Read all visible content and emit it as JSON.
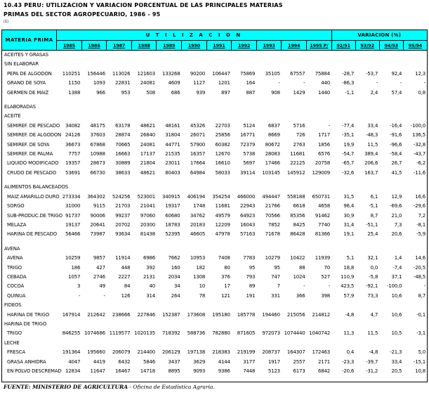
{
  "title": {
    "line1": "10.43  PERU:  UTILIZACION Y VARIACION PORCENTUAL DE LAS PRINCIPALES MATERIAS",
    "line2": "PRIMAS DEL SECTOR AGROPECUARIO, 1986 - 95",
    "note": "(1)"
  },
  "colors": {
    "header_bg": "#00FFFF",
    "border": "#000000",
    "text": "#000000",
    "page_bg": "#FFFFFF"
  },
  "header": {
    "materia_prima": "MATERIA PRIMA",
    "utilizacion": "U T I L I Z A C I O N",
    "variacion": "VARIACION (%)",
    "years": [
      "1985",
      "1986",
      "1987",
      "1988",
      "1989",
      "1990",
      "1991",
      "1992",
      "1993",
      "1994",
      "1995 P/"
    ],
    "variation_cols": [
      "92/91",
      "93/92",
      "94/93",
      "95/94"
    ]
  },
  "sections": [
    {
      "label": "ACEITES Y GRASAS",
      "gap_before": false,
      "rows": []
    },
    {
      "label": "SIN ELABORAR",
      "gap_before": false,
      "rows": [
        {
          "label": "PEPA DE ALGODON",
          "values": [
            "110251",
            "156446",
            "113026",
            "121603",
            "133268",
            "90200",
            "106447",
            "75869",
            "35105",
            "67557",
            "75884"
          ],
          "variations": [
            "-28,7",
            "-53,7",
            "92,4",
            "12,3"
          ]
        },
        {
          "label": "GRANO DE SOYA",
          "values": [
            "1150",
            "1093",
            "22831",
            "24081",
            "4609",
            "1127",
            "1201",
            "164",
            "-",
            "-",
            "440"
          ],
          "variations": [
            "-86,3",
            "-",
            "-",
            "-"
          ]
        },
        {
          "label": "GERMEN DE MAIZ",
          "values": [
            "1388",
            "966",
            "953",
            "508",
            "686",
            "939",
            "897",
            "887",
            "908",
            "1429",
            "1440"
          ],
          "variations": [
            "-1,1",
            "2,4",
            "57,4",
            "0,8"
          ]
        }
      ]
    },
    {
      "label": "ELABORADAS",
      "gap_before": true,
      "rows": []
    },
    {
      "label": "ACEITE",
      "gap_before": false,
      "rows": [
        {
          "label": "SEMIREF. DE PESCADO",
          "values": [
            "34082",
            "48175",
            "63178",
            "48621",
            "48161",
            "45326",
            "22703",
            "5124",
            "6837",
            "5716",
            "-"
          ],
          "variations": [
            "-77,4",
            "33,4",
            "-16,4",
            "-100,0"
          ]
        },
        {
          "label": "SEMIREF. DE ALGODON",
          "values": [
            "24126",
            "37603",
            "28874",
            "26840",
            "31804",
            "26071",
            "25856",
            "16771",
            "8669",
            "726",
            "1717"
          ],
          "variations": [
            "-35,1",
            "-48,3",
            "-91,6",
            "136,5"
          ]
        },
        {
          "label": "SEMIREF. DE SOYA",
          "values": [
            "36673",
            "67868",
            "70665",
            "24081",
            "44771",
            "57900",
            "60382",
            "72379",
            "80672",
            "2763",
            "1856"
          ],
          "variations": [
            "19,9",
            "11,5",
            "-96,6",
            "-32,8"
          ]
        },
        {
          "label": "SEMIREF. DE PALMA",
          "values": [
            "7757",
            "10988",
            "16663",
            "17137",
            "21535",
            "16357",
            "12670",
            "5738",
            "28083",
            "11681",
            "6576"
          ],
          "variations": [
            "-54,7",
            "389,4",
            "-58,4",
            "-43,7"
          ]
        },
        {
          "label": "LIQUIDO MODIFICADO",
          "values": [
            "19357",
            "28673",
            "30889",
            "21804",
            "23011",
            "17664",
            "16610",
            "5697",
            "17466",
            "22125",
            "20758"
          ],
          "variations": [
            "-65,7",
            "206,6",
            "26,7",
            "-6,2"
          ]
        },
        {
          "label": "CRUDO DE PESCADO",
          "values": [
            "53691",
            "66730",
            "38633",
            "48621",
            "80403",
            "64984",
            "58033",
            "39114",
            "103145",
            "145912",
            "129009"
          ],
          "variations": [
            "-32,6",
            "163,7",
            "41,5",
            "-11,6"
          ]
        }
      ]
    },
    {
      "label": "ALIMENTOS BALANCEADOS",
      "gap_before": true,
      "rows": [
        {
          "label": "MAIZ AMARILLO DURO",
          "values": [
            "273334",
            "364302",
            "524256",
            "523001",
            "340915",
            "406194",
            "354254",
            "466000",
            "494447",
            "558188",
            "650731"
          ],
          "variations": [
            "31,5",
            "6,1",
            "12,9",
            "16,6"
          ]
        },
        {
          "label": "SORGO",
          "values": [
            "31000",
            "9115",
            "21703",
            "21041",
            "19317",
            "1748",
            "11681",
            "22943",
            "21766",
            "6618",
            "4658"
          ],
          "variations": [
            "96,4",
            "-5,1",
            "-69,6",
            "-29,6"
          ]
        },
        {
          "label": "SUB-PRODUC.DE TRIGO",
          "values": [
            "91737",
            "90006",
            "99237",
            "97060",
            "60680",
            "34762",
            "49579",
            "64923",
            "70566",
            "85356",
            "91462"
          ],
          "variations": [
            "30,9",
            "8,7",
            "21,0",
            "7,2"
          ]
        },
        {
          "label": "MELAZA",
          "values": [
            "19137",
            "20641",
            "20702",
            "20300",
            "18783",
            "20183",
            "12209",
            "16043",
            "7852",
            "8425",
            "7740"
          ],
          "variations": [
            "31,4",
            "-51,1",
            "7,3",
            "-8,1"
          ]
        },
        {
          "label": "HARINA DE PESCADO",
          "values": [
            "56466",
            "73987",
            "93634",
            "81438",
            "52395",
            "46605",
            "47978",
            "57163",
            "71678",
            "86428",
            "81366"
          ],
          "variations": [
            "19,1",
            "25,4",
            "20,6",
            "-5,9"
          ]
        }
      ]
    },
    {
      "label": "AVENA",
      "gap_before": true,
      "rows": [
        {
          "label": "AVENA",
          "values": [
            "10259",
            "9857",
            "11914",
            "6986",
            "7662",
            "10953",
            "7408",
            "7783",
            "10279",
            "10422",
            "11939"
          ],
          "variations": [
            "5,1",
            "32,1",
            "1,4",
            "14,6"
          ]
        },
        {
          "label": "TRIGO",
          "values": [
            "186",
            "427",
            "448",
            "392",
            "160",
            "182",
            "80",
            "95",
            "95",
            "88",
            "70"
          ],
          "variations": [
            "18,8",
            "0,0",
            "-7,4",
            "-20,5"
          ]
        },
        {
          "label": "CEBADA",
          "values": [
            "1057",
            "2746",
            "2227",
            "2131",
            "2034",
            "1308",
            "376",
            "793",
            "747",
            "1024",
            "527"
          ],
          "variations": [
            "110,9",
            "-5,8",
            "37,1",
            "-48,5"
          ]
        },
        {
          "label": "COCOA",
          "values": [
            "3",
            "49",
            "84",
            "40",
            "34",
            "10",
            "17",
            "89",
            "7",
            "-",
            "-"
          ],
          "variations": [
            "423,5",
            "-92,1",
            "-100,0",
            "-"
          ]
        },
        {
          "label": "QUINUA",
          "values": [
            "-",
            "-",
            "126",
            "314",
            "264",
            "78",
            "121",
            "191",
            "331",
            "366",
            "398"
          ],
          "variations": [
            "57,9",
            "73,3",
            "10,6",
            "8,7"
          ]
        }
      ]
    },
    {
      "label": "FIDEOS",
      "gap_before": false,
      "rows": [
        {
          "label": "HARINA DE TRIGO",
          "values": [
            "167914",
            "212642",
            "238666",
            "227846",
            "152387",
            "173608",
            "195180",
            "185778",
            "194460",
            "215056",
            "214812"
          ],
          "variations": [
            "-4,8",
            "4,7",
            "10,6",
            "-0,1"
          ]
        }
      ]
    },
    {
      "label": "HARINA DE TRIGO",
      "gap_before": false,
      "rows": [
        {
          "label": "TRIGO",
          "values": [
            "846255",
            "1074686",
            "1119577",
            "1020135",
            "718392",
            "588736",
            "782880",
            "871605",
            "972073",
            "1074440",
            "1040742"
          ],
          "variations": [
            "11,3",
            "11,5",
            "10,5",
            "-3,1"
          ]
        }
      ]
    },
    {
      "label": "LECHE",
      "gap_before": false,
      "rows": [
        {
          "label": "FRESCA",
          "values": [
            "191364",
            "195660",
            "206079",
            "214400",
            "206129",
            "197138",
            "218383",
            "219199",
            "208737",
            "164307",
            "172463"
          ],
          "variations": [
            "0,4",
            "-4,8",
            "-21,3",
            "5,0"
          ]
        },
        {
          "label": "GRASA ANHIDRA",
          "values": [
            "4047",
            "4419",
            "6432",
            "5846",
            "3437",
            "3629",
            "4144",
            "3177",
            "1917",
            "2557",
            "2171"
          ],
          "variations": [
            "-23,3",
            "-39,7",
            "33,4",
            "-15,1"
          ]
        },
        {
          "label": "EN POLVO DESCREMAD",
          "values": [
            "12834",
            "11647",
            "16467",
            "14718",
            "8895",
            "9093",
            "9386",
            "7448",
            "5123",
            "6173",
            "6842"
          ],
          "variations": [
            "-20,6",
            "-31,2",
            "20,5",
            "10,8"
          ]
        }
      ]
    }
  ],
  "footer": {
    "source_label": "FUENTE: MINISTERIO DE AGRICULTURA",
    "source_detail": " - Oficina de Estadística Agraria."
  }
}
